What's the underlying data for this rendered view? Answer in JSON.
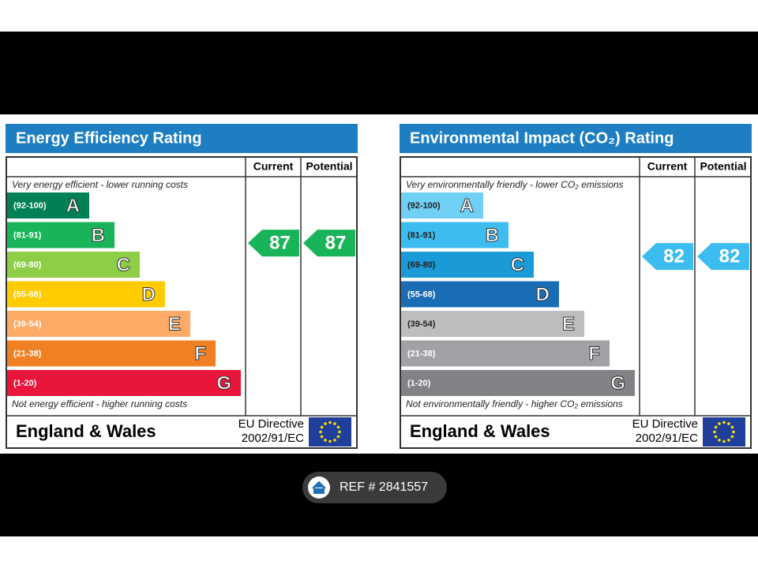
{
  "panels": [
    {
      "title": "Energy Efficiency Rating",
      "columns": [
        "Current",
        "Potential"
      ],
      "top_note": "Very energy efficient - lower running costs",
      "bottom_note": "Not energy efficient - higher running costs",
      "bands": [
        {
          "range": "(92-100)",
          "letter": "A",
          "color": "#008054"
        },
        {
          "range": "(81-91)",
          "letter": "B",
          "color": "#19b459"
        },
        {
          "range": "(69-80)",
          "letter": "C",
          "color": "#8dce46"
        },
        {
          "range": "(55-68)",
          "letter": "D",
          "color": "#ffcc00"
        },
        {
          "range": "(39-54)",
          "letter": "E",
          "color": "#fcaa65"
        },
        {
          "range": "(21-38)",
          "letter": "F",
          "color": "#ef8023"
        },
        {
          "range": "(1-20)",
          "letter": "G",
          "color": "#e9153b"
        }
      ],
      "current": 87,
      "potential": 87,
      "region": "England & Wales",
      "directive": "EU Directive",
      "directive_code": "2002/91/EC"
    },
    {
      "title": "Environmental Impact (CO₂) Rating",
      "columns": [
        "Current",
        "Potential"
      ],
      "top_note": "Very environmentally friendly - lower CO₂ emissions",
      "bottom_note": "Not environmentally friendly - higher CO₂ emissions",
      "bands": [
        {
          "range": "(92-100)",
          "letter": "A",
          "color": "#6fcff4"
        },
        {
          "range": "(81-91)",
          "letter": "B",
          "color": "#3dbcef"
        },
        {
          "range": "(69-80)",
          "letter": "C",
          "color": "#1a9ad6"
        },
        {
          "range": "(55-68)",
          "letter": "D",
          "color": "#1a6db5"
        },
        {
          "range": "(39-54)",
          "letter": "E",
          "color": "#bbbdbf"
        },
        {
          "range": "(21-38)",
          "letter": "F",
          "color": "#a0a2a5"
        },
        {
          "range": "(1-20)",
          "letter": "G",
          "color": "#808285"
        }
      ],
      "current": 82,
      "potential": 82,
      "region": "England & Wales",
      "directive": "EU Directive",
      "directive_code": "2002/91/EC"
    }
  ],
  "screen": {
    "ref": "REF # 2841557"
  }
}
